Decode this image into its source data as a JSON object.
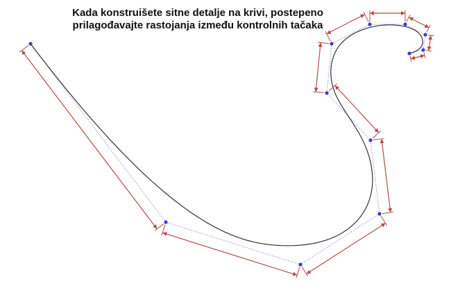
{
  "title": {
    "line1": "Kada konstruišete sitne detalje na krivi, postepeno",
    "line2": "prilagođavajte rastojanja između kontrolnih tačaka"
  },
  "colors": {
    "curve": "#333333",
    "control_polygon": "#8a8cf0",
    "control_point": "#3a3ae0",
    "dimension_arrow": "#b54a4a"
  }
}
